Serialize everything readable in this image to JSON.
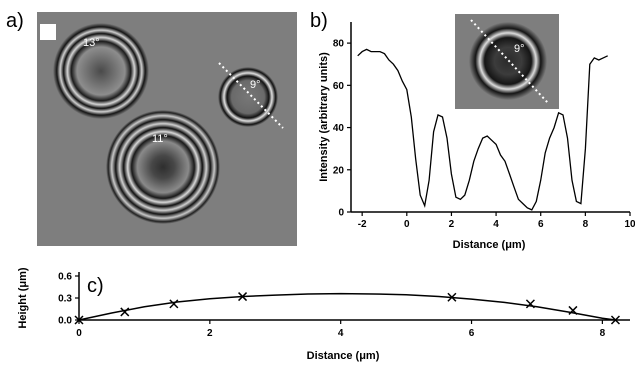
{
  "panels": {
    "a": "a)",
    "b": "b)",
    "c": "c)"
  },
  "micrograph": {
    "droplets": [
      {
        "angle_label": "13°"
      },
      {
        "angle_label": "9°"
      },
      {
        "angle_label": "11°"
      }
    ]
  },
  "chart_data": [
    {
      "type": "line",
      "panel": "b",
      "title": "",
      "xlabel": "Distance (μm)",
      "ylabel": "Intensity (arbitrary units)",
      "xlim": [
        -2.5,
        10
      ],
      "ylim": [
        0,
        90
      ],
      "xticks": [
        -2,
        0,
        2,
        4,
        6,
        8,
        10
      ],
      "yticks": [
        0,
        20,
        40,
        60,
        80
      ],
      "grid": false,
      "inset_label": "9°",
      "x": [
        -2.2,
        -2.0,
        -1.8,
        -1.6,
        -1.4,
        -1.2,
        -1.0,
        -0.8,
        -0.6,
        -0.4,
        -0.2,
        0.0,
        0.2,
        0.4,
        0.6,
        0.8,
        1.0,
        1.2,
        1.4,
        1.6,
        1.8,
        2.0,
        2.2,
        2.4,
        2.6,
        2.8,
        3.0,
        3.2,
        3.4,
        3.6,
        3.8,
        4.0,
        4.2,
        4.4,
        4.6,
        4.8,
        5.0,
        5.2,
        5.4,
        5.6,
        5.8,
        6.0,
        6.2,
        6.4,
        6.6,
        6.8,
        7.0,
        7.2,
        7.4,
        7.6,
        7.8,
        8.0,
        8.2,
        8.4,
        8.6,
        8.8,
        9.0
      ],
      "y": [
        74,
        76,
        77,
        76,
        76,
        76,
        75,
        72,
        70,
        67,
        62,
        58,
        45,
        25,
        8,
        3,
        15,
        38,
        46,
        45,
        35,
        18,
        7,
        6,
        8,
        15,
        24,
        30,
        35,
        36,
        34,
        32,
        27,
        24,
        18,
        12,
        6,
        4,
        2,
        1,
        5,
        15,
        28,
        35,
        40,
        47,
        46,
        35,
        15,
        5,
        4,
        30,
        70,
        73,
        72,
        73,
        74
      ]
    },
    {
      "type": "line",
      "panel": "c",
      "title": "",
      "xlabel": "Distance (μm)",
      "ylabel": "Height (μm)",
      "xlim": [
        0,
        8.3
      ],
      "ylim": [
        0,
        0.6
      ],
      "xticks": [
        0,
        2,
        4,
        6,
        8
      ],
      "yticks": [
        0.0,
        0.3,
        0.6
      ],
      "grid": false,
      "series": [
        {
          "kind": "markers",
          "x": [
            0,
            0.7,
            1.45,
            2.5,
            5.7,
            6.9,
            7.55,
            8.2
          ],
          "y": [
            0,
            0.11,
            0.22,
            0.32,
            0.31,
            0.22,
            0.13,
            0
          ]
        },
        {
          "kind": "fit",
          "x": [
            0,
            0.5,
            1.0,
            1.5,
            2.0,
            2.5,
            3.0,
            3.5,
            4.0,
            4.5,
            5.0,
            5.5,
            6.0,
            6.5,
            7.0,
            7.5,
            8.0,
            8.2
          ],
          "y": [
            0.0,
            0.095,
            0.18,
            0.245,
            0.29,
            0.32,
            0.34,
            0.355,
            0.36,
            0.355,
            0.345,
            0.32,
            0.285,
            0.24,
            0.18,
            0.105,
            0.025,
            0.0
          ]
        }
      ]
    }
  ]
}
